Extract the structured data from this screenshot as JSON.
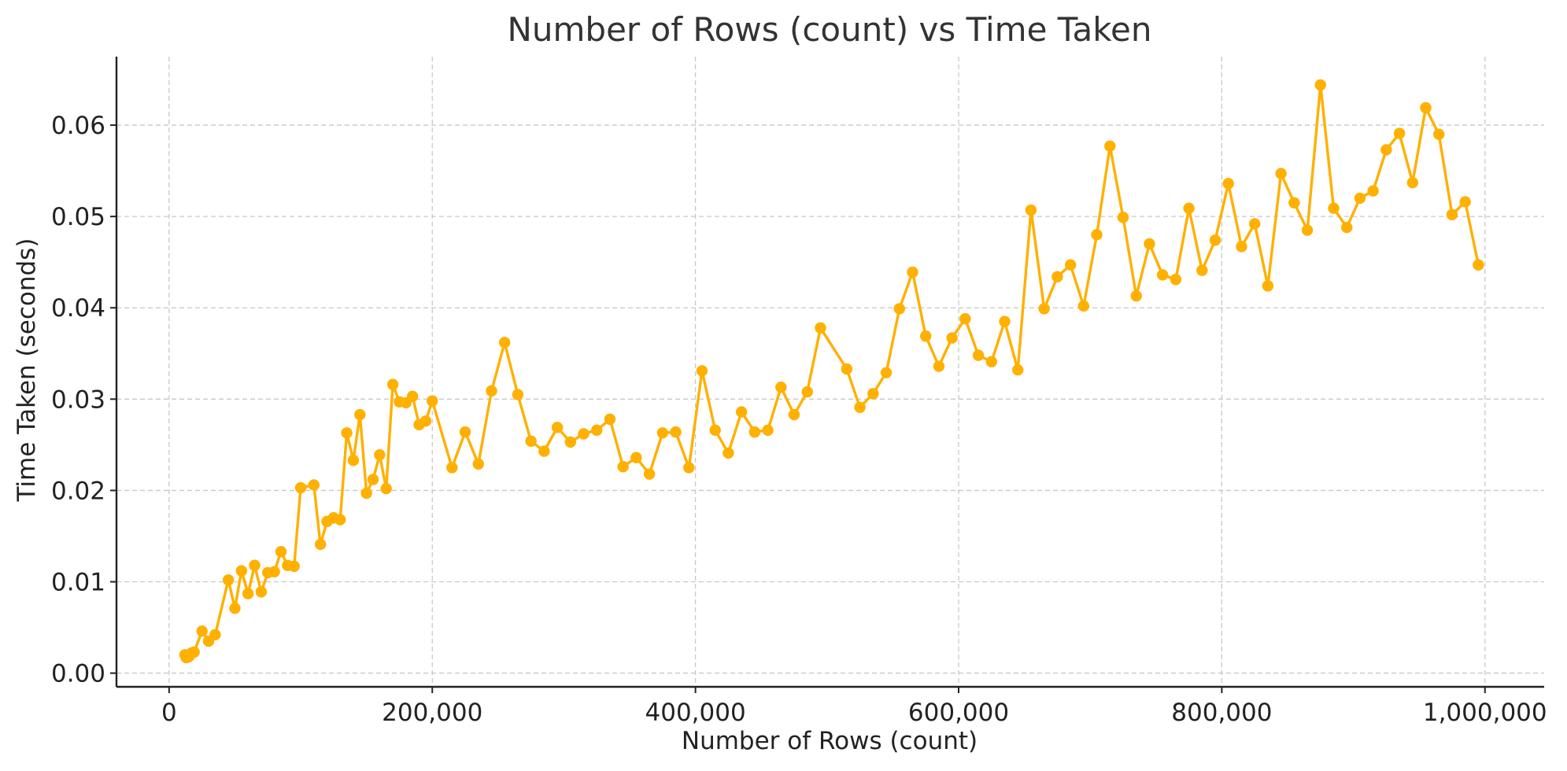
{
  "chart_data": {
    "type": "line",
    "title": "Number of Rows (count) vs Time Taken",
    "xlabel": "Number of Rows (count)",
    "ylabel": "Time Taken (seconds)",
    "xlim": [
      -40000,
      1045000
    ],
    "ylim": [
      -0.0015,
      0.0675
    ],
    "xticks": [
      0,
      200000,
      400000,
      600000,
      800000,
      1000000
    ],
    "xtick_labels": [
      "0",
      "200,000",
      "400,000",
      "600,000",
      "800,000",
      "1,000,000"
    ],
    "yticks": [
      0.0,
      0.01,
      0.02,
      0.03,
      0.04,
      0.05,
      0.06
    ],
    "ytick_labels": [
      "0.00",
      "0.01",
      "0.02",
      "0.03",
      "0.04",
      "0.05",
      "0.06"
    ],
    "grid": true,
    "legend": "none",
    "series_color": "#FFB000",
    "series": [
      {
        "x": [
          12000,
          13000,
          14000,
          15000,
          17000,
          19000,
          25000,
          30000,
          35000,
          45000,
          50000,
          55000,
          60000,
          65000,
          70000,
          75000,
          80000,
          85000,
          90000,
          95000,
          100000,
          110000,
          115000,
          120000,
          125000,
          130000,
          135000,
          140000,
          145000,
          150000,
          155000,
          160000,
          165000,
          170000,
          175000,
          180000,
          185000,
          190000,
          195000,
          200000,
          215000,
          225000,
          235000,
          245000,
          255000,
          265000,
          275000,
          285000,
          295000,
          305000,
          315000,
          325000,
          335000,
          345000,
          355000,
          365000,
          375000,
          385000,
          395000,
          405000,
          415000,
          425000,
          435000,
          445000,
          455000,
          465000,
          475000,
          485000,
          495000,
          515000,
          525000,
          535000,
          545000,
          555000,
          565000,
          575000,
          585000,
          595000,
          605000,
          615000,
          625000,
          635000,
          645000,
          655000,
          665000,
          675000,
          685000,
          695000,
          705000,
          715000,
          725000,
          735000,
          745000,
          755000,
          765000,
          775000,
          785000,
          795000,
          805000,
          815000,
          825000,
          835000,
          845000,
          855000,
          865000,
          875000,
          885000,
          895000,
          905000,
          915000,
          925000,
          935000,
          945000,
          955000,
          965000,
          975000,
          985000,
          995000
        ],
        "y": [
          0.002,
          0.0017,
          0.0019,
          0.0018,
          0.0022,
          0.0023,
          0.0046,
          0.0035,
          0.0042,
          0.0102,
          0.0071,
          0.0112,
          0.0087,
          0.0118,
          0.0089,
          0.011,
          0.0111,
          0.0133,
          0.0118,
          0.0117,
          0.0203,
          0.0206,
          0.0141,
          0.0166,
          0.017,
          0.0168,
          0.0263,
          0.0233,
          0.0283,
          0.0197,
          0.0212,
          0.0239,
          0.0202,
          0.0316,
          0.0297,
          0.0296,
          0.0303,
          0.0272,
          0.0276,
          0.0298,
          0.0225,
          0.0264,
          0.0229,
          0.0309,
          0.0362,
          0.0305,
          0.0254,
          0.0243,
          0.0269,
          0.0253,
          0.0262,
          0.0266,
          0.0278,
          0.0226,
          0.0236,
          0.0218,
          0.0263,
          0.0264,
          0.0225,
          0.0331,
          0.0266,
          0.0241,
          0.0286,
          0.0264,
          0.0266,
          0.0313,
          0.0283,
          0.0308,
          0.0378,
          0.0333,
          0.0291,
          0.0306,
          0.0329,
          0.0399,
          0.0439,
          0.0369,
          0.0336,
          0.0367,
          0.0388,
          0.0348,
          0.0341,
          0.0385,
          0.0332,
          0.0507,
          0.0399,
          0.0434,
          0.0447,
          0.0402,
          0.048,
          0.0577,
          0.0499,
          0.0413,
          0.047,
          0.0436,
          0.0431,
          0.0509,
          0.0441,
          0.0474,
          0.0536,
          0.0467,
          0.0492,
          0.0424,
          0.0547,
          0.0515,
          0.0485,
          0.0644,
          0.0509,
          0.0488,
          0.052,
          0.0528,
          0.0573,
          0.0591,
          0.0537,
          0.0619,
          0.059,
          0.0502,
          0.0516,
          0.0447
        ]
      }
    ]
  }
}
